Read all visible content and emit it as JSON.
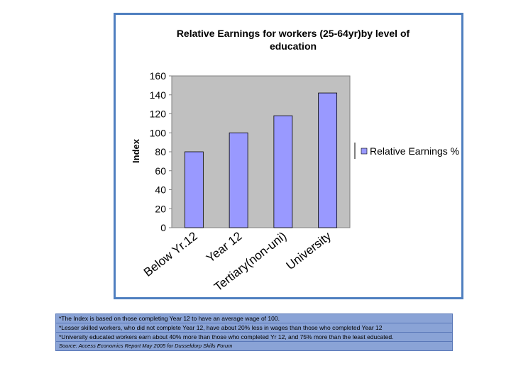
{
  "chart_data": {
    "type": "bar",
    "title": "Relative Earnings for workers (25-64yr)by level of education",
    "title_lines": [
      "Relative Earnings for workers (25-64yr)by level of",
      "education"
    ],
    "ylabel": "Index",
    "xlabel": "",
    "categories": [
      "Below Yr.12",
      "Year 12",
      "Tertiary(non-uni)",
      "University"
    ],
    "series": [
      {
        "name": "Relative Earnings %",
        "values": [
          80,
          100,
          118,
          142
        ]
      }
    ],
    "ylim": [
      0,
      160
    ],
    "yticks": [
      "0",
      "20",
      "40",
      "60",
      "80",
      "100",
      "120",
      "140",
      "160"
    ],
    "grid": false,
    "legend": "right",
    "colors": {
      "bar": "#9999ff",
      "plot_bg": "#c0c0c0",
      "frame": "#4f7fc0"
    }
  },
  "notes": {
    "lines": [
      "*The Index is based on those completing Year 12 to have an average wage of 100.",
      "*Lesser skilled workers, who did not complete Year 12, have about 20% less in wages than those who completed Year 12",
      "*University educated workers earn about 40% more than those who completed Yr 12, and 75% more than the least educated."
    ],
    "source": "Source: Access Economics Report May 2005 for Dusseldorp Skills Forum"
  }
}
